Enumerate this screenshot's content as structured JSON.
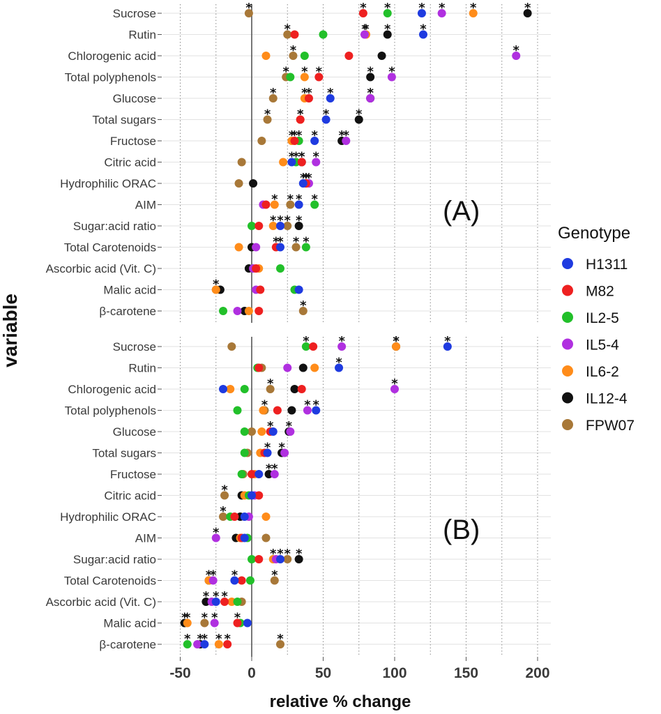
{
  "chart_data": {
    "type": "scatter",
    "xlabel": "relative % change",
    "ylabel": "variable",
    "xlim": [
      -55,
      210
    ],
    "x_ticks": [
      -50,
      0,
      50,
      100,
      150,
      200
    ],
    "grid": true,
    "legend": {
      "title": "Genotype",
      "placement": "right",
      "entries": [
        {
          "name": "H1311",
          "color": "#1f3be0"
        },
        {
          "name": "M82",
          "color": "#ee2020"
        },
        {
          "name": "IL2-5",
          "color": "#22c02a"
        },
        {
          "name": "IL5-4",
          "color": "#b030e0"
        },
        {
          "name": "IL6-2",
          "color": "#ff8c1a"
        },
        {
          "name": "IL12-4",
          "color": "#111111"
        },
        {
          "name": "FPW07",
          "color": "#a87838"
        }
      ]
    },
    "genotypes": [
      "H1311",
      "M82",
      "IL2-5",
      "IL5-4",
      "IL6-2",
      "IL12-4",
      "FPW07"
    ],
    "significance_marker": "*",
    "panels": [
      {
        "label": "(A)",
        "variables": [
          "Sucrose",
          "Rutin",
          "Chlorogenic acid",
          "Total polyphenols",
          "Glucose",
          "Total sugars",
          "Fructose",
          "Citric acid",
          "Hydrophilic ORAC",
          "AIM",
          "Sugar:acid ratio",
          "Total Carotenoids",
          "Ascorbic acid (Vit. C)",
          "Malic acid",
          "β-carotene"
        ],
        "values": [
          [
            119,
            78,
            95,
            133,
            155,
            193,
            -2
          ],
          [
            120,
            30,
            50,
            79,
            80,
            95,
            25
          ],
          [
            null,
            68,
            37,
            185,
            10,
            91,
            29
          ],
          [
            null,
            47,
            27,
            98,
            37,
            83,
            24
          ],
          [
            55,
            40,
            null,
            83,
            37,
            83,
            15
          ],
          [
            52,
            34,
            null,
            null,
            34,
            75,
            11
          ],
          [
            44,
            30,
            33,
            66,
            28,
            63,
            7
          ],
          [
            28,
            35,
            31,
            45,
            22,
            35,
            -7
          ],
          [
            36,
            38,
            null,
            40,
            38,
            1,
            -9
          ],
          [
            33,
            10,
            44,
            8,
            16,
            null,
            27
          ],
          [
            20,
            5,
            0,
            null,
            15,
            33,
            25
          ],
          [
            20,
            17,
            38,
            3,
            -9,
            0,
            31
          ],
          [
            null,
            3,
            20,
            1,
            5,
            -2,
            1
          ],
          [
            33,
            6,
            30,
            3,
            -25,
            -22,
            -25
          ],
          [
            null,
            5,
            -20,
            -10,
            -2,
            -5,
            36
          ]
        ],
        "significant": [
          [
            1,
            1,
            1,
            1,
            1,
            1,
            1
          ],
          [
            1,
            0,
            0,
            1,
            1,
            1,
            1
          ],
          [
            0,
            0,
            0,
            1,
            0,
            0,
            1
          ],
          [
            0,
            1,
            0,
            1,
            1,
            1,
            1
          ],
          [
            1,
            1,
            0,
            1,
            1,
            1,
            1
          ],
          [
            1,
            1,
            0,
            0,
            1,
            1,
            1
          ],
          [
            1,
            1,
            1,
            1,
            1,
            1,
            0
          ],
          [
            1,
            1,
            1,
            1,
            0,
            1,
            0
          ],
          [
            1,
            1,
            0,
            1,
            1,
            0,
            0
          ],
          [
            1,
            0,
            1,
            0,
            1,
            0,
            1
          ],
          [
            1,
            0,
            0,
            0,
            1,
            1,
            1
          ],
          [
            1,
            1,
            1,
            0,
            0,
            0,
            1
          ],
          [
            0,
            0,
            0,
            0,
            0,
            0,
            0
          ],
          [
            0,
            0,
            0,
            0,
            1,
            0,
            0
          ],
          [
            0,
            0,
            0,
            0,
            0,
            0,
            1
          ]
        ]
      },
      {
        "label": "(B)",
        "variables": [
          "Sucrose",
          "Rutin",
          "Chlorogenic acid",
          "Total polyphenols",
          "Glucose",
          "Total sugars",
          "Fructose",
          "Citric acid",
          "Hydrophilic ORAC",
          "AIM",
          "Sugar:acid ratio",
          "Total Carotenoids",
          "Ascorbic acid (Vit. C)",
          "Malic acid",
          "β-carotene"
        ],
        "values": [
          [
            137,
            43,
            38,
            63,
            101,
            101,
            -14
          ],
          [
            61,
            5,
            4,
            25,
            44,
            36,
            7
          ],
          [
            -20,
            35,
            -5,
            100,
            -15,
            30,
            13
          ],
          [
            45,
            18,
            -10,
            39,
            8,
            28,
            9
          ],
          [
            15,
            13,
            -5,
            27,
            7,
            26,
            0
          ],
          [
            11,
            9,
            -5,
            23,
            6,
            21,
            -3
          ],
          [
            5,
            0,
            -7,
            16,
            2,
            12,
            -6
          ],
          [
            0,
            5,
            -2,
            2,
            -5,
            -7,
            -19
          ],
          [
            -5,
            -12,
            -15,
            -2,
            10,
            -8,
            -20
          ],
          [
            -5,
            -7,
            -3,
            -25,
            -8,
            -11,
            10
          ],
          [
            20,
            5,
            0,
            17,
            15,
            33,
            25
          ],
          [
            -12,
            -7,
            -1,
            -27,
            -30,
            -30,
            16
          ],
          [
            -25,
            -19,
            -10,
            -28,
            -14,
            -32,
            -7
          ],
          [
            -3,
            -10,
            -8,
            -26,
            -45,
            -47,
            -33
          ],
          [
            -33,
            -17,
            -45,
            -38,
            -23,
            -36,
            20
          ]
        ],
        "significant": [
          [
            1,
            0,
            1,
            1,
            1,
            1,
            0
          ],
          [
            1,
            0,
            0,
            0,
            0,
            0,
            0
          ],
          [
            0,
            0,
            0,
            1,
            0,
            0,
            1
          ],
          [
            1,
            0,
            0,
            1,
            0,
            0,
            1
          ],
          [
            0,
            1,
            0,
            0,
            0,
            1,
            0
          ],
          [
            1,
            0,
            0,
            0,
            0,
            1,
            0
          ],
          [
            0,
            0,
            0,
            1,
            0,
            1,
            0
          ],
          [
            0,
            0,
            0,
            0,
            0,
            0,
            1
          ],
          [
            0,
            0,
            0,
            0,
            0,
            0,
            1
          ],
          [
            0,
            0,
            0,
            1,
            0,
            0,
            0
          ],
          [
            1,
            0,
            0,
            0,
            1,
            1,
            1
          ],
          [
            1,
            0,
            0,
            1,
            0,
            1,
            1
          ],
          [
            1,
            1,
            0,
            0,
            0,
            1,
            0
          ],
          [
            0,
            1,
            0,
            1,
            1,
            1,
            1
          ],
          [
            1,
            1,
            1,
            0,
            1,
            1,
            1
          ]
        ]
      }
    ]
  }
}
